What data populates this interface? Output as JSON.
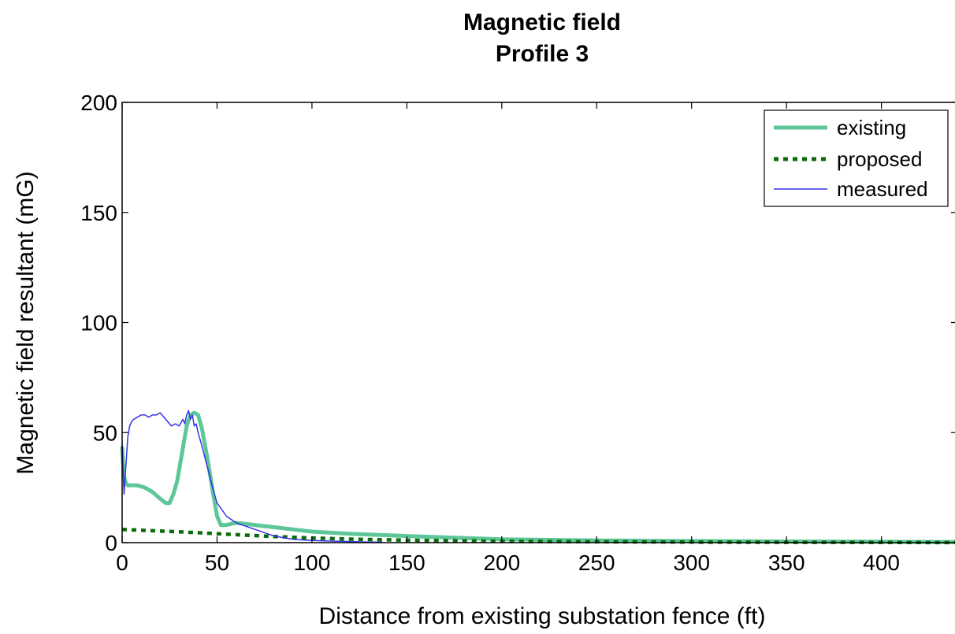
{
  "chart_data": {
    "type": "line",
    "title": "Magnetic field",
    "subtitle": "Profile 3",
    "xlabel": "Distance from existing substation fence (ft)",
    "ylabel": "Magnetic field resultant (mG)",
    "xlim": [
      0,
      440
    ],
    "ylim": [
      0,
      200
    ],
    "xticks": [
      "0",
      "50",
      "100",
      "150",
      "200",
      "250",
      "300",
      "350",
      "400"
    ],
    "yticks": [
      "0",
      "50",
      "100",
      "150",
      "200"
    ],
    "grid": false,
    "legend_position": "top-right",
    "series": [
      {
        "name": "existing",
        "color": "#5ec79a",
        "style": "solid-thick",
        "x": [
          0,
          1,
          2,
          3,
          5,
          8,
          12,
          16,
          20,
          23,
          25,
          27,
          29,
          30,
          32,
          34,
          36,
          38,
          40,
          42,
          45,
          48,
          50,
          52,
          55,
          60,
          70,
          80,
          90,
          100,
          120,
          150,
          200,
          250,
          300,
          350,
          400,
          440
        ],
        "y": [
          43,
          30,
          27,
          26,
          26,
          26,
          25,
          23,
          20,
          18,
          18,
          22,
          28,
          33,
          43,
          53,
          58,
          59,
          58,
          52,
          38,
          22,
          12,
          8,
          8,
          9,
          8,
          7,
          6,
          5,
          4,
          3,
          1.5,
          1,
          0.7,
          0.5,
          0.4,
          0.3
        ]
      },
      {
        "name": "proposed",
        "color": "#0a6b0a",
        "style": "dotted-thick",
        "x": [
          0,
          20,
          40,
          60,
          80,
          100,
          120,
          150,
          200,
          250,
          300,
          350,
          400,
          440
        ],
        "y": [
          6,
          5.3,
          4.5,
          3.6,
          2.8,
          2.1,
          1.6,
          1.1,
          0.6,
          0.4,
          0.25,
          0.15,
          0.1,
          0.05
        ]
      },
      {
        "name": "measured",
        "color": "#3333e6",
        "style": "solid-thin",
        "x": [
          0,
          1,
          2,
          3,
          4,
          5,
          6,
          8,
          10,
          12,
          14,
          16,
          18,
          20,
          22,
          24,
          26,
          28,
          30,
          32,
          33,
          34,
          35,
          36,
          37,
          38,
          39,
          40,
          42,
          45,
          48,
          50,
          55,
          60,
          70,
          80,
          90,
          100,
          110,
          120,
          130,
          137
        ],
        "y": [
          45,
          22,
          35,
          48,
          53,
          55,
          56,
          57,
          58,
          58,
          57,
          58,
          58,
          59,
          57,
          55,
          53,
          54,
          53,
          56,
          54,
          58,
          60,
          56,
          58,
          53,
          54,
          50,
          44,
          34,
          24,
          18,
          12,
          9,
          6,
          3,
          1.5,
          1,
          0.7,
          0.5,
          0.3,
          0.2
        ]
      }
    ]
  }
}
